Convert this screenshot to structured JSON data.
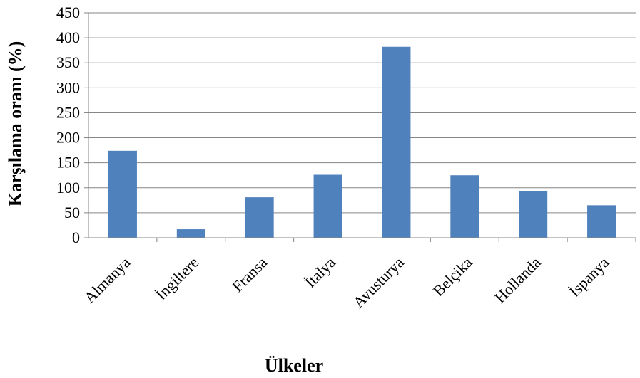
{
  "chart_data": {
    "type": "bar",
    "title": "",
    "xlabel": "Ülkeler",
    "ylabel": "Karşılama oranı (%)",
    "ylim": [
      0,
      450
    ],
    "yticks": [
      "0",
      "50",
      "100",
      "150",
      "200",
      "250",
      "300",
      "350",
      "400",
      "450"
    ],
    "categories": [
      "Almanya",
      "İngiltere",
      "Fransa",
      "İtalya",
      "Avusturya",
      "Belçika",
      "Hollanda",
      "İspanya"
    ],
    "values": [
      174,
      17,
      81,
      126,
      382,
      125,
      94,
      65
    ],
    "grid": true,
    "legend": "none",
    "bar_color": "#4F81BD",
    "grid_color": "#868686"
  }
}
